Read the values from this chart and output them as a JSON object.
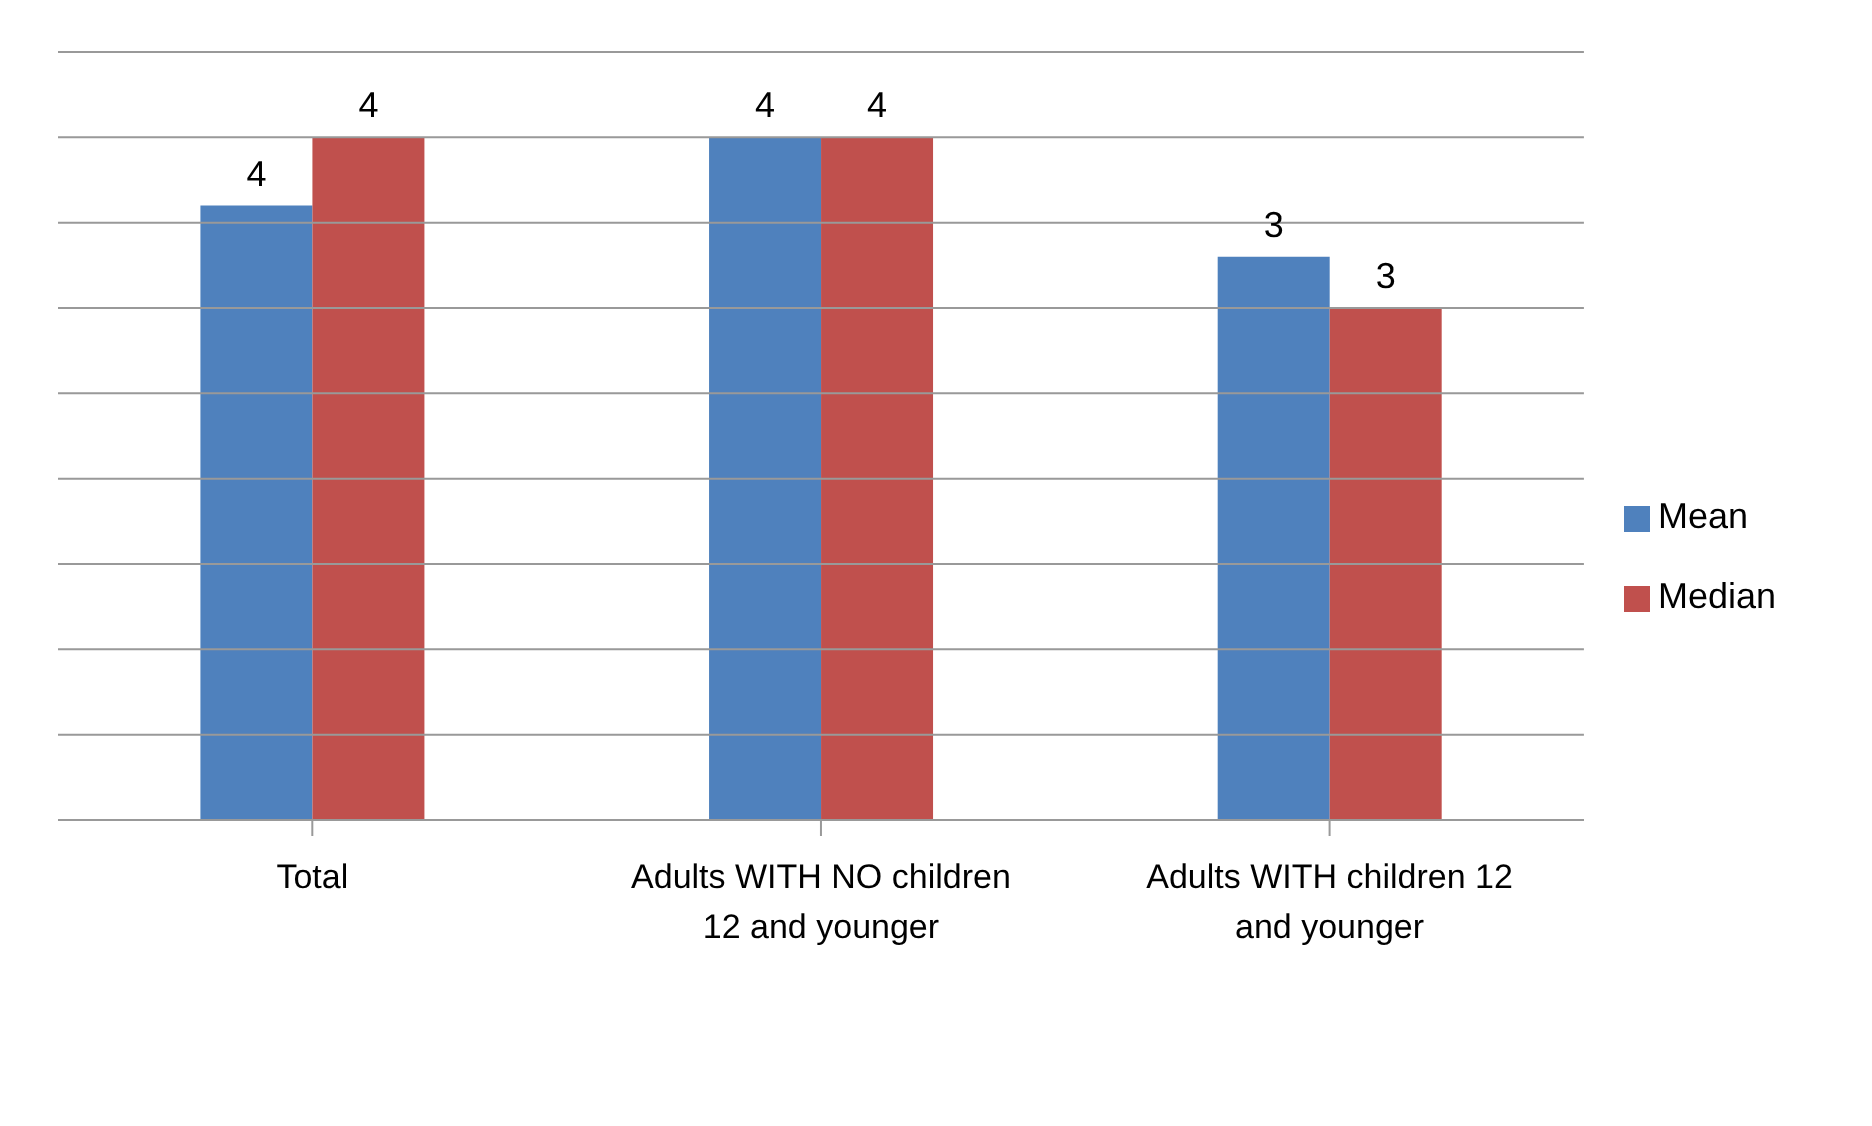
{
  "chart_data": {
    "type": "bar",
    "categories": [
      "Total",
      "Adults WITH NO children 12 and younger",
      "Adults WITH children 12 and younger"
    ],
    "series": [
      {
        "name": "Mean",
        "color": "#4f81bd",
        "values": [
          3.6,
          4.0,
          3.3
        ],
        "value_labels": [
          "4",
          "4",
          "3"
        ]
      },
      {
        "name": "Median",
        "color": "#c0504d",
        "values": [
          4.0,
          4.0,
          3.0
        ],
        "value_labels": [
          "4",
          "4",
          "3"
        ]
      }
    ],
    "ylim": [
      0,
      4.5
    ],
    "yticks": [
      {
        "value": 0,
        "label": null
      },
      {
        "value": 0.5,
        "label": null
      },
      {
        "value": 1,
        "label": null
      },
      {
        "value": 1.5,
        "label": null
      },
      {
        "value": 2,
        "label": null
      },
      {
        "value": 2.5,
        "label": null
      },
      {
        "value": 3,
        "label": null
      },
      {
        "value": 3.5,
        "label": null
      },
      {
        "value": 4,
        "label": null
      },
      {
        "value": 4.5,
        "label": null
      }
    ],
    "grid": "y",
    "legend": "right",
    "tick_labels": "x"
  }
}
